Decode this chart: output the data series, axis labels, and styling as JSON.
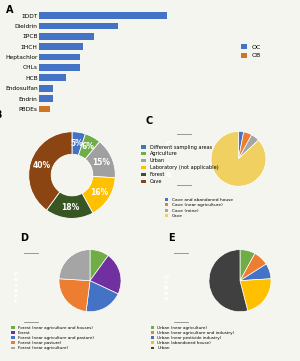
{
  "panel_A": {
    "labels": [
      "ΣDDT",
      "Dieldrin",
      "ΣPCB",
      "ΣHCH",
      "Heptachlor",
      "CHLs",
      "HCB",
      "Endosulfan",
      "Endrin",
      "PBDEs"
    ],
    "values": [
      47,
      29,
      20,
      16,
      15,
      15,
      10,
      5,
      5,
      4
    ],
    "colors": [
      "#4472C4",
      "#4472C4",
      "#4472C4",
      "#4472C4",
      "#4472C4",
      "#4472C4",
      "#4472C4",
      "#4472C4",
      "#4472C4",
      "#D07428"
    ]
  },
  "panel_B": {
    "values": [
      5,
      6,
      15,
      16,
      18,
      40
    ],
    "labels": [
      "Different sampling areas",
      "Agriculture",
      "Urban",
      "Laboratory (not applicable)",
      "Forest",
      "Cave"
    ],
    "colors": [
      "#4472C4",
      "#70AD47",
      "#A0A0A0",
      "#FFC000",
      "#375623",
      "#8B4513"
    ]
  },
  "panel_C": {
    "values": [
      3,
      5,
      5,
      87
    ],
    "labels": [
      "Cave and abandoned house",
      "Cave (near agriculture)",
      "Cave (mine)",
      "Cave"
    ],
    "colors": [
      "#4472C4",
      "#ED7D31",
      "#A5A5A5",
      "#F0D060"
    ]
  },
  "panel_D": {
    "values": [
      10,
      22,
      20,
      24,
      24
    ],
    "labels": [
      "Forest (near agriculture and houses)",
      "Forest",
      "Forest (near agriculture and pasture)",
      "Forest (near pasture)",
      "Forest (near agriculture)"
    ],
    "colors": [
      "#70AD47",
      "#7030A0",
      "#4472C4",
      "#ED7D31",
      "#A5A5A5"
    ]
  },
  "panel_E": {
    "values": [
      8,
      8,
      8,
      22,
      54
    ],
    "labels": [
      "Urban (near agriculture)",
      "Urban (near agriculture and industry)",
      "Urban (near pesticide industry)",
      "Urban (abandoned house)",
      "Urban"
    ],
    "colors": [
      "#70AD47",
      "#ED7D31",
      "#4472C4",
      "#FFC000",
      "#404040"
    ]
  },
  "bg_color": "#F5F5F0",
  "cave_color": "#8B4513",
  "forest_color": "#375623",
  "urban_color": "#808080"
}
